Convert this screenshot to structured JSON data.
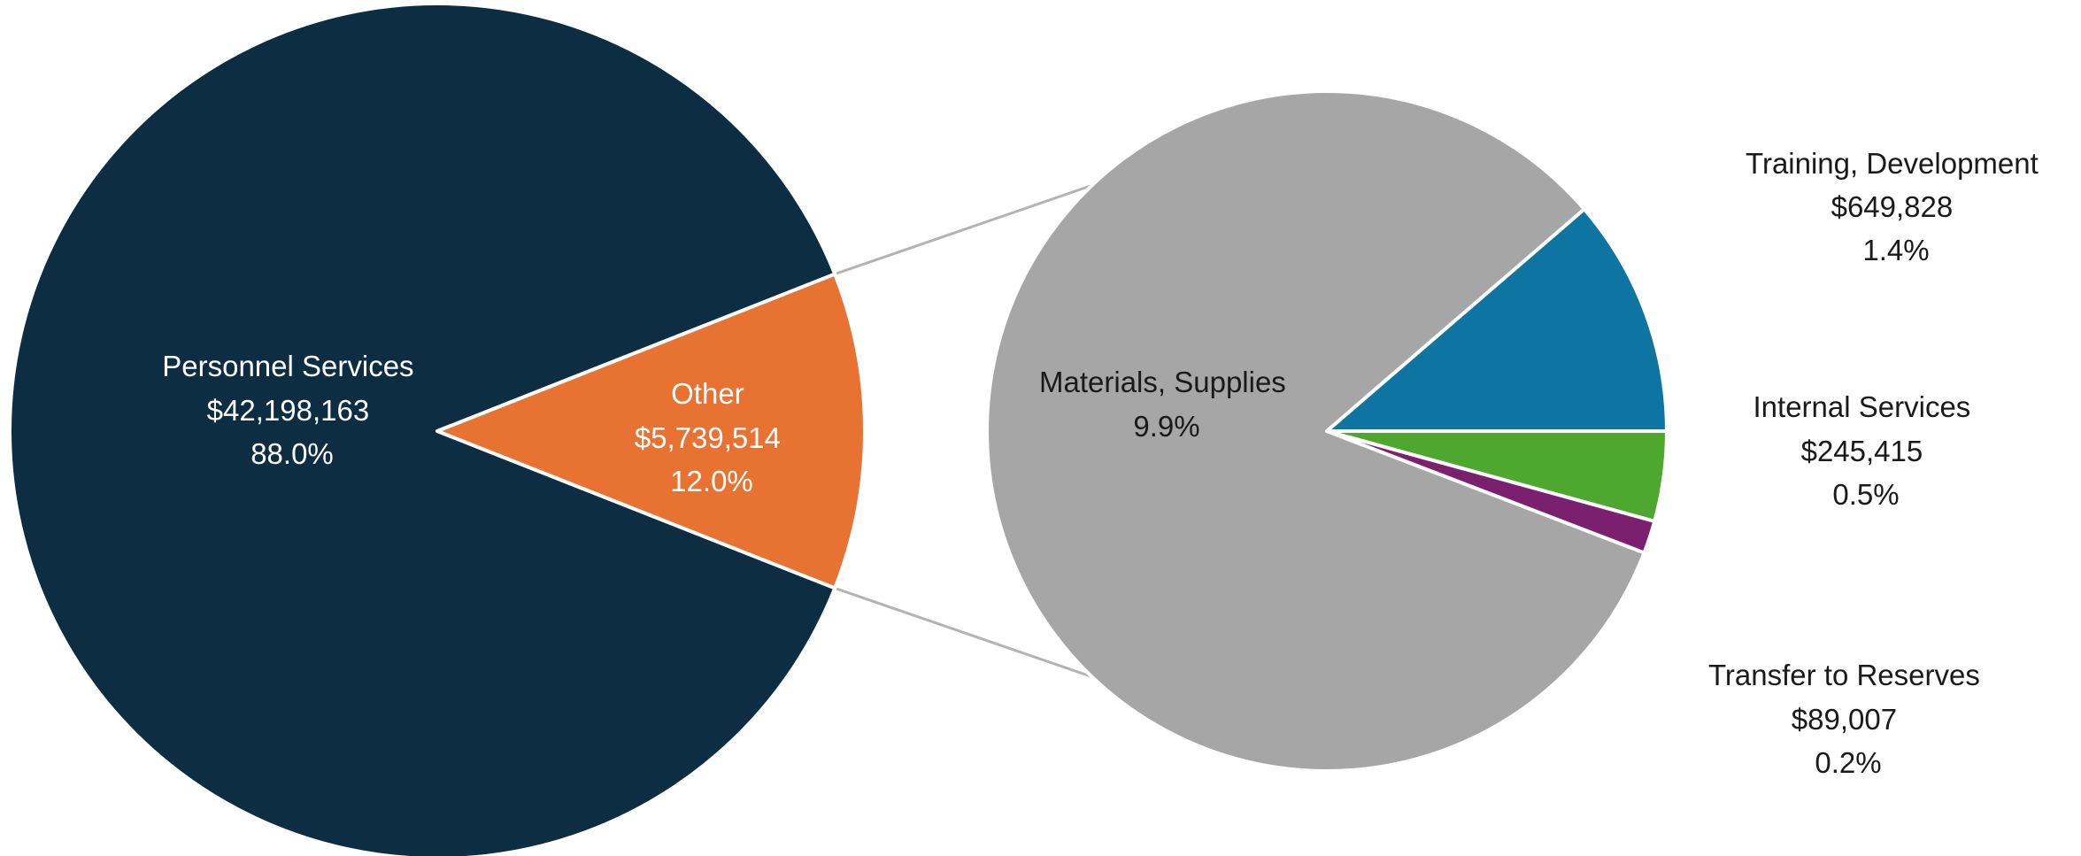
{
  "chart_data": [
    {
      "type": "pie",
      "slices": [
        {
          "key": "personnel",
          "label": "Personnel Services",
          "amount": "$42,198,163",
          "value": 42198163,
          "percent": "88.0%",
          "color": "#0d2e42"
        },
        {
          "key": "other",
          "label": "Other",
          "amount": "$5,739,514",
          "value": 5739514,
          "percent": "12.0%",
          "color": "#e87231"
        }
      ]
    },
    {
      "type": "pie",
      "breakdown_of": "Other",
      "slices": [
        {
          "key": "materials",
          "label": "Materials, Supplies",
          "amount": "",
          "value": 4755264,
          "percent": "9.9%",
          "color": "#a6a6a6"
        },
        {
          "key": "training",
          "label": "Training, Development",
          "amount": "$649,828",
          "value": 649828,
          "percent": "1.4%",
          "color": "#0e74a2"
        },
        {
          "key": "internal",
          "label": "Internal Services",
          "amount": "$245,415",
          "value": 245415,
          "percent": "0.5%",
          "color": "#4ea72e"
        },
        {
          "key": "transfer",
          "label": "Transfer to Reserves",
          "amount": "$89,007",
          "value": 89007,
          "percent": "0.2%",
          "color": "#7b1f6f"
        }
      ]
    }
  ]
}
